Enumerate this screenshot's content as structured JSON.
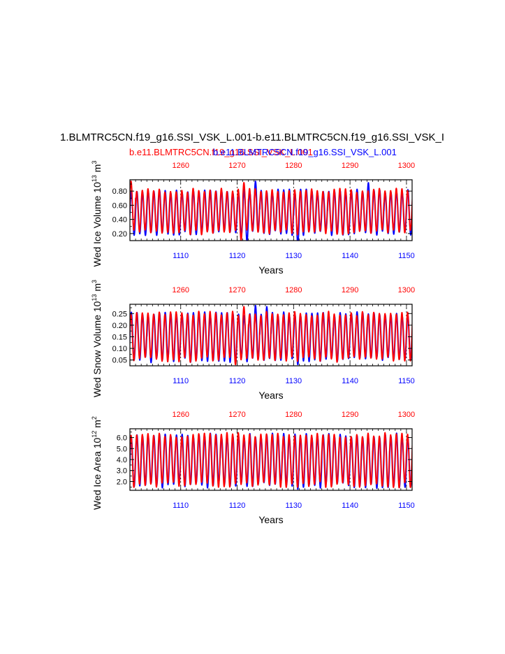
{
  "page": {
    "title": "1.BLMTRC5CN.f19_g16.SSI_VSK_L.001-b.e11.BLMTRC5CN.f19_g16.SSI_VSK_I",
    "legend_red": "b.e11.BLMTRC5CN.f19_g16.SSI_VSK_L.001",
    "legend_blue": "b.e11.BLMTRC5CN.f19_g16.SSI_VSK_L.001",
    "colors": {
      "series_a": "#0000ff",
      "series_b": "#ff0000",
      "axis": "#000000"
    }
  },
  "chart_data": [
    {
      "type": "line",
      "ylabel": "Wed Ice Volume 10",
      "ylabel_exp": "13",
      "ylabel_unit": "m",
      "ylabel_unit_exp": "3",
      "xlabel": "Years",
      "xlim": [
        1101,
        1151
      ],
      "top_xlim": [
        1251,
        1301
      ],
      "ylim": [
        0.1,
        0.96
      ],
      "yticks": [
        "0.20",
        "0.40",
        "0.60",
        "0.80"
      ],
      "ytick_values": [
        0.2,
        0.4,
        0.6,
        0.8
      ],
      "xticks": [
        "1110",
        "1120",
        "1130",
        "1140",
        "1150"
      ],
      "xtick_values": [
        1110,
        1120,
        1130,
        1140,
        1150
      ],
      "top_xticks": [
        "1260",
        "1270",
        "1280",
        "1290",
        "1300"
      ],
      "gridlines_dashed_at": [
        1110,
        1120,
        1130,
        1140,
        1150
      ],
      "series": [
        {
          "name": "blue",
          "color": "#0000ff",
          "mean": 0.5,
          "amp": 0.3,
          "seed": 3,
          "peaks_override": {
            "1123": 0.94,
            "1143": 0.92,
            "1151": 0.9
          },
          "troughs_override": {
            "1130": 0.05,
            "1121": 0.08
          }
        },
        {
          "name": "red",
          "color": "#ff0000",
          "mean": 0.51,
          "amp": 0.3,
          "seed": 7,
          "peaks_override": {
            "1101": 0.94,
            "1121": 0.92
          },
          "troughs_override": {
            "1120": 0.1
          }
        }
      ]
    },
    {
      "type": "line",
      "ylabel": "Wed Snow Volume 10",
      "ylabel_exp": "13",
      "ylabel_unit": "m",
      "ylabel_unit_exp": "3",
      "xlabel": "Years",
      "xlim": [
        1101,
        1151
      ],
      "top_xlim": [
        1251,
        1301
      ],
      "ylim": [
        0.025,
        0.29
      ],
      "yticks": [
        "0.05",
        "0.10",
        "0.15",
        "0.20",
        "0.25"
      ],
      "ytick_values": [
        0.05,
        0.1,
        0.15,
        0.2,
        0.25
      ],
      "xticks": [
        "1110",
        "1120",
        "1130",
        "1140",
        "1150"
      ],
      "xtick_values": [
        1110,
        1120,
        1130,
        1140,
        1150
      ],
      "top_xticks": [
        "1260",
        "1270",
        "1280",
        "1290",
        "1300"
      ],
      "gridlines_dashed_at": [
        1110,
        1120,
        1130,
        1140,
        1150
      ],
      "series": [
        {
          "name": "blue",
          "color": "#0000ff",
          "mean": 0.148,
          "amp": 0.1,
          "seed": 5,
          "peaks_override": {
            "1123": 0.285,
            "1125": 0.28
          },
          "troughs_override": {
            "1130": 0.03
          }
        },
        {
          "name": "red",
          "color": "#ff0000",
          "mean": 0.15,
          "amp": 0.1,
          "seed": 9,
          "peaks_override": {
            "1121": 0.28
          },
          "troughs_override": {
            "1119": 0.03
          }
        }
      ]
    },
    {
      "type": "line",
      "ylabel": "Wed Ice Area 10",
      "ylabel_exp": "12",
      "ylabel_unit": "m",
      "ylabel_unit_exp": "2",
      "xlabel": "Years",
      "xlim": [
        1101,
        1151
      ],
      "top_xlim": [
        1251,
        1301
      ],
      "ylim": [
        1.2,
        6.8
      ],
      "yticks": [
        "2.0",
        "3.0",
        "4.0",
        "5.0",
        "6.0"
      ],
      "ytick_values": [
        2.0,
        3.0,
        4.0,
        5.0,
        6.0
      ],
      "xticks": [
        "1110",
        "1120",
        "1130",
        "1140",
        "1150"
      ],
      "xtick_values": [
        1110,
        1120,
        1130,
        1140,
        1150
      ],
      "top_xticks": [
        "1260",
        "1270",
        "1280",
        "1290",
        "1300"
      ],
      "gridlines_dashed_at": [
        1110,
        1120,
        1130,
        1140,
        1150
      ],
      "series": [
        {
          "name": "blue",
          "color": "#0000ff",
          "mean": 3.9,
          "amp": 2.3,
          "seed": 4,
          "peaks_override": {},
          "troughs_override": {
            "1130": 1.3
          }
        },
        {
          "name": "red",
          "color": "#ff0000",
          "mean": 3.95,
          "amp": 2.3,
          "seed": 8,
          "peaks_override": {},
          "troughs_override": {}
        }
      ]
    }
  ]
}
